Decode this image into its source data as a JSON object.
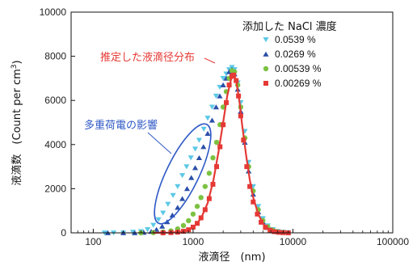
{
  "chart_data": {
    "type": "scatter",
    "xlabel": "液滴径　(nm)",
    "ylabel_main": "液滴数",
    "ylabel_unit": "(Count per cm",
    "ylabel_sup": "3",
    "ylabel_close": ")",
    "x_scale": "log",
    "xlim": [
      60,
      100000
    ],
    "ylim": [
      0,
      10000
    ],
    "x_ticks": [
      {
        "value": 100,
        "label": "100"
      },
      {
        "value": 1000,
        "label": "1000"
      },
      {
        "value": 10000,
        "label": "10000"
      },
      {
        "value": 100000,
        "label": "100000"
      }
    ],
    "y_ticks": [
      {
        "value": 0,
        "label": "0"
      },
      {
        "value": 2000,
        "label": "2000"
      },
      {
        "value": 4000,
        "label": "4000"
      },
      {
        "value": 6000,
        "label": "6000"
      },
      {
        "value": 8000,
        "label": "8000"
      },
      {
        "value": 10000,
        "label": "10000"
      }
    ],
    "legend_title": "添加した NaCl 濃度",
    "legend_position": "top-right",
    "series": [
      {
        "name": "0.0539 %",
        "marker": "triangle-down",
        "color": "#5bc8e6",
        "points": [
          [
            130,
            0
          ],
          [
            160,
            0
          ],
          [
            200,
            0
          ],
          [
            250,
            30
          ],
          [
            300,
            60
          ],
          [
            350,
            150
          ],
          [
            400,
            350
          ],
          [
            450,
            600
          ],
          [
            500,
            900
          ],
          [
            560,
            1300
          ],
          [
            630,
            1700
          ],
          [
            700,
            2100
          ],
          [
            780,
            2600
          ],
          [
            860,
            3000
          ],
          [
            950,
            3400
          ],
          [
            1050,
            3800
          ],
          [
            1150,
            4200
          ],
          [
            1280,
            4700
          ],
          [
            1400,
            5200
          ],
          [
            1550,
            5700
          ],
          [
            1700,
            6200
          ],
          [
            1850,
            6600
          ],
          [
            2000,
            7000
          ],
          [
            2150,
            7200
          ],
          [
            2300,
            7400
          ],
          [
            2450,
            7500
          ],
          [
            2600,
            7400
          ],
          [
            2800,
            6800
          ],
          [
            3000,
            5900
          ],
          [
            3300,
            4600
          ],
          [
            3600,
            3200
          ],
          [
            4000,
            2100
          ],
          [
            4500,
            1200
          ],
          [
            5000,
            650
          ],
          [
            5600,
            320
          ],
          [
            6300,
            150
          ],
          [
            7000,
            70
          ],
          [
            8000,
            30
          ],
          [
            9000,
            10
          ]
        ]
      },
      {
        "name": "0.0269 %",
        "marker": "triangle-up",
        "color": "#2b4fa8",
        "points": [
          [
            140,
            0
          ],
          [
            200,
            0
          ],
          [
            260,
            0
          ],
          [
            320,
            20
          ],
          [
            380,
            60
          ],
          [
            430,
            150
          ],
          [
            490,
            300
          ],
          [
            550,
            500
          ],
          [
            620,
            800
          ],
          [
            700,
            1150
          ],
          [
            780,
            1550
          ],
          [
            870,
            2000
          ],
          [
            960,
            2500
          ],
          [
            1050,
            2950
          ],
          [
            1150,
            3400
          ],
          [
            1270,
            3900
          ],
          [
            1400,
            4500
          ],
          [
            1550,
            5100
          ],
          [
            1700,
            5700
          ],
          [
            1850,
            6200
          ],
          [
            2000,
            6700
          ],
          [
            2150,
            7000
          ],
          [
            2300,
            7300
          ],
          [
            2450,
            7400
          ],
          [
            2600,
            7200
          ],
          [
            2800,
            6500
          ],
          [
            3000,
            5500
          ],
          [
            3300,
            4100
          ],
          [
            3600,
            2800
          ],
          [
            4000,
            1750
          ],
          [
            4500,
            950
          ],
          [
            5000,
            500
          ],
          [
            5600,
            240
          ],
          [
            6300,
            110
          ],
          [
            7000,
            45
          ],
          [
            8000,
            15
          ]
        ]
      },
      {
        "name": "0.00539 %",
        "marker": "circle",
        "color": "#7cc242",
        "points": [
          [
            300,
            0
          ],
          [
            400,
            10
          ],
          [
            500,
            40
          ],
          [
            600,
            90
          ],
          [
            700,
            180
          ],
          [
            800,
            330
          ],
          [
            900,
            550
          ],
          [
            1000,
            850
          ],
          [
            1100,
            1200
          ],
          [
            1200,
            1600
          ],
          [
            1320,
            2100
          ],
          [
            1450,
            2700
          ],
          [
            1580,
            3400
          ],
          [
            1720,
            4100
          ],
          [
            1860,
            4900
          ],
          [
            2000,
            5700
          ],
          [
            2150,
            6400
          ],
          [
            2300,
            7000
          ],
          [
            2450,
            7350
          ],
          [
            2600,
            7300
          ],
          [
            2800,
            6700
          ],
          [
            3000,
            5700
          ],
          [
            3300,
            4300
          ],
          [
            3600,
            3000
          ],
          [
            4000,
            1900
          ],
          [
            4500,
            1050
          ],
          [
            5000,
            560
          ],
          [
            5600,
            270
          ],
          [
            6300,
            120
          ],
          [
            7000,
            50
          ],
          [
            8000,
            20
          ]
        ]
      },
      {
        "name": "0.00269 %",
        "marker": "square",
        "color": "#e53935",
        "points": [
          [
            500,
            0
          ],
          [
            600,
            10
          ],
          [
            700,
            30
          ],
          [
            800,
            70
          ],
          [
            900,
            140
          ],
          [
            1000,
            260
          ],
          [
            1100,
            430
          ],
          [
            1200,
            680
          ],
          [
            1320,
            1050
          ],
          [
            1450,
            1550
          ],
          [
            1580,
            2200
          ],
          [
            1720,
            3000
          ],
          [
            1860,
            3900
          ],
          [
            2000,
            4900
          ],
          [
            2150,
            5900
          ],
          [
            2300,
            6700
          ],
          [
            2450,
            7100
          ],
          [
            2550,
            7150
          ],
          [
            2700,
            6900
          ],
          [
            2850,
            6200
          ],
          [
            3000,
            5300
          ],
          [
            3200,
            4200
          ],
          [
            3450,
            3000
          ],
          [
            3700,
            2100
          ],
          [
            4000,
            1400
          ],
          [
            4400,
            850
          ],
          [
            4800,
            480
          ],
          [
            5300,
            250
          ],
          [
            5900,
            120
          ],
          [
            6500,
            55
          ],
          [
            7200,
            25
          ],
          [
            8000,
            10
          ],
          [
            9000,
            0
          ]
        ]
      }
    ],
    "fitted_curve": {
      "label": "推定した液滴径分布",
      "color": "#e53935",
      "points": [
        [
          400,
          0
        ],
        [
          600,
          10
        ],
        [
          800,
          60
        ],
        [
          1000,
          230
        ],
        [
          1200,
          650
        ],
        [
          1400,
          1350
        ],
        [
          1600,
          2400
        ],
        [
          1800,
          3700
        ],
        [
          2000,
          5000
        ],
        [
          2200,
          6200
        ],
        [
          2400,
          6950
        ],
        [
          2550,
          7150
        ],
        [
          2700,
          6900
        ],
        [
          2900,
          6000
        ],
        [
          3100,
          4900
        ],
        [
          3400,
          3500
        ],
        [
          3700,
          2400
        ],
        [
          4000,
          1600
        ],
        [
          4500,
          850
        ],
        [
          5000,
          430
        ],
        [
          5600,
          200
        ],
        [
          6300,
          80
        ],
        [
          7000,
          30
        ],
        [
          8000,
          10
        ],
        [
          9000,
          0
        ]
      ]
    },
    "annotations": [
      {
        "text": "推定した液滴径分布",
        "color": "#e53935"
      },
      {
        "text": "多重荷電の影響",
        "color": "#2f59c6"
      }
    ],
    "grid": false
  }
}
